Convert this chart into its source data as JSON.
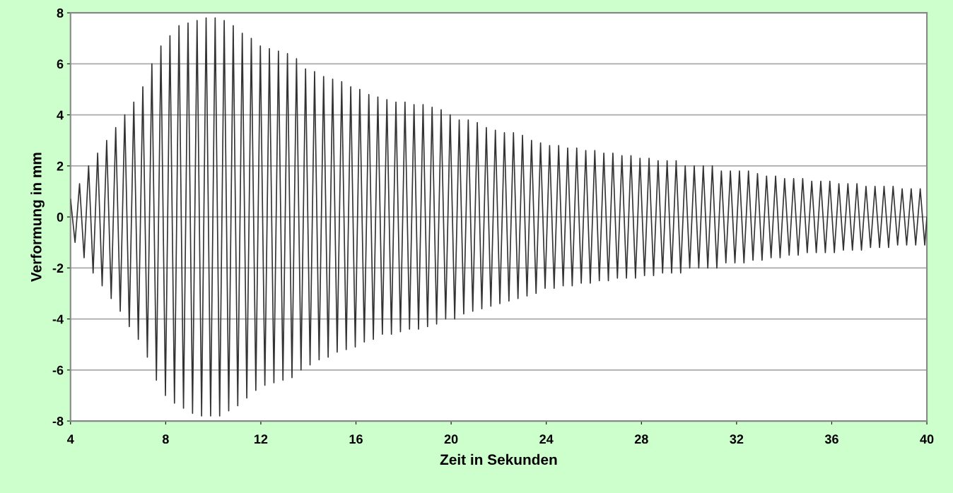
{
  "chart_data": {
    "type": "line",
    "xlabel": "Zeit in Sekunden",
    "ylabel": "Verformung in mm",
    "xlim": [
      4,
      40
    ],
    "xticks": [
      4,
      8,
      12,
      16,
      20,
      24,
      28,
      32,
      36,
      40
    ],
    "ylim": [
      -8,
      8
    ],
    "yticks": [
      -8,
      -6,
      -4,
      -2,
      0,
      2,
      4,
      6,
      8
    ],
    "grid": "y",
    "marker": "none",
    "line_style": "solid",
    "series": [
      {
        "color": "#333333",
        "x": [
          4.0,
          4.19,
          4.38,
          4.57,
          4.76,
          4.95,
          5.14,
          5.33,
          5.52,
          5.71,
          5.9,
          6.09,
          6.28,
          6.47,
          6.66,
          6.85,
          7.04,
          7.23,
          7.42,
          7.61,
          7.8,
          7.99,
          8.18,
          8.37,
          8.56,
          8.75,
          8.94,
          9.13,
          9.32,
          9.51,
          9.7,
          9.89,
          10.08,
          10.27,
          10.46,
          10.65,
          10.84,
          11.03,
          11.22,
          11.41,
          11.6,
          11.79,
          11.98,
          12.17,
          12.36,
          12.55,
          12.74,
          12.93,
          13.12,
          13.31,
          13.5,
          13.69,
          13.88,
          14.07,
          14.26,
          14.45,
          14.64,
          14.83,
          15.02,
          15.21,
          15.4,
          15.59,
          15.78,
          15.97,
          16.16,
          16.35,
          16.54,
          16.73,
          16.92,
          17.11,
          17.3,
          17.49,
          17.68,
          17.87,
          18.06,
          18.25,
          18.44,
          18.63,
          18.82,
          19.01,
          19.2,
          19.39,
          19.58,
          19.77,
          19.96,
          20.15,
          20.34,
          20.53,
          20.72,
          20.91,
          21.1,
          21.29,
          21.48,
          21.67,
          21.86,
          22.05,
          22.24,
          22.43,
          22.62,
          22.81,
          23.0,
          23.19,
          23.38,
          23.57,
          23.76,
          23.95,
          24.14,
          24.33,
          24.52,
          24.71,
          24.9,
          25.09,
          25.28,
          25.47,
          25.66,
          25.85,
          26.04,
          26.23,
          26.42,
          26.61,
          26.8,
          26.99,
          27.18,
          27.37,
          27.56,
          27.75,
          27.94,
          28.13,
          28.32,
          28.51,
          28.7,
          28.89,
          29.08,
          29.27,
          29.46,
          29.65,
          29.84,
          30.03,
          30.22,
          30.41,
          30.6,
          30.79,
          30.98,
          31.17,
          31.36,
          31.55,
          31.74,
          31.93,
          32.12,
          32.31,
          32.5,
          32.69,
          32.88,
          33.07,
          33.26,
          33.45,
          33.64,
          33.83,
          34.02,
          34.21,
          34.4,
          34.59,
          34.78,
          34.97,
          35.16,
          35.35,
          35.54,
          35.73,
          35.92,
          36.11,
          36.3,
          36.49,
          36.68,
          36.87,
          37.06,
          37.25,
          37.44,
          37.63,
          37.82,
          38.01,
          38.2,
          38.39,
          38.58,
          38.77,
          38.96,
          39.15,
          39.34,
          39.53,
          39.72,
          39.91,
          40.0
        ],
        "values": [
          0.7,
          -1.0,
          1.3,
          -1.6,
          2.0,
          -2.2,
          2.5,
          -2.7,
          3.0,
          -3.2,
          3.5,
          -3.7,
          4.0,
          -4.3,
          4.5,
          -4.8,
          5.1,
          -5.5,
          6.0,
          -6.4,
          6.7,
          -7.0,
          7.1,
          -7.3,
          7.5,
          -7.5,
          7.6,
          -7.7,
          7.7,
          -7.8,
          7.8,
          -7.8,
          7.8,
          -7.8,
          7.7,
          -7.6,
          7.5,
          -7.4,
          7.2,
          -7.1,
          7.0,
          -6.8,
          6.7,
          -6.6,
          6.6,
          -6.5,
          6.5,
          -6.4,
          6.4,
          -6.3,
          6.2,
          -6.0,
          5.8,
          -5.8,
          5.7,
          -5.6,
          5.5,
          -5.5,
          5.4,
          -5.3,
          5.3,
          -5.2,
          5.1,
          -5.1,
          5.0,
          -4.9,
          4.8,
          -4.8,
          4.7,
          -4.6,
          4.6,
          -4.6,
          4.5,
          -4.5,
          4.5,
          -4.4,
          4.4,
          -4.4,
          4.4,
          -4.3,
          4.3,
          -4.2,
          4.2,
          -4.0,
          4.0,
          -4.0,
          3.8,
          -3.8,
          3.8,
          -3.7,
          3.7,
          -3.6,
          3.5,
          -3.5,
          3.4,
          -3.4,
          3.3,
          -3.3,
          3.3,
          -3.2,
          3.2,
          -3.1,
          3.0,
          -3.0,
          2.9,
          -2.8,
          2.8,
          -2.8,
          2.8,
          -2.7,
          2.7,
          -2.7,
          2.7,
          -2.6,
          2.6,
          -2.6,
          2.6,
          -2.5,
          2.5,
          -2.5,
          2.5,
          -2.4,
          2.4,
          -2.4,
          2.4,
          -2.4,
          2.3,
          -2.3,
          2.3,
          -2.3,
          2.2,
          -2.2,
          2.2,
          -2.2,
          2.2,
          -2.2,
          2.0,
          -2.0,
          2.0,
          -2.0,
          2.0,
          -2.0,
          2.0,
          -2.0,
          1.8,
          -1.8,
          1.8,
          -1.8,
          1.8,
          -1.8,
          1.8,
          -1.7,
          1.7,
          -1.7,
          1.6,
          -1.6,
          1.6,
          -1.6,
          1.5,
          -1.5,
          1.5,
          -1.5,
          1.5,
          -1.4,
          1.4,
          -1.4,
          1.4,
          -1.4,
          1.4,
          -1.4,
          1.3,
          -1.3,
          1.3,
          -1.3,
          1.3,
          -1.3,
          1.2,
          -1.2,
          1.2,
          -1.2,
          1.2,
          -1.2,
          1.2,
          -1.1,
          1.1,
          -1.1,
          1.1,
          -1.1,
          1.1,
          -1.1,
          0.0
        ]
      }
    ]
  }
}
